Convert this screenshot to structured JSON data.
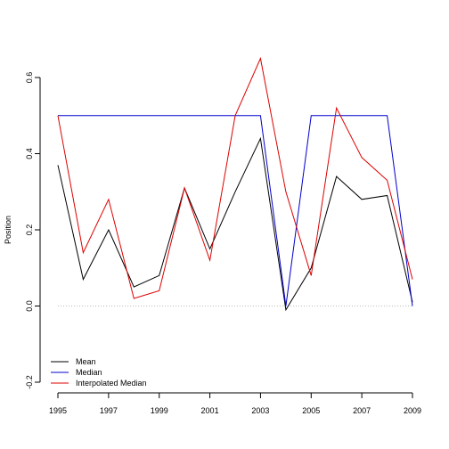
{
  "chart_data": {
    "type": "line",
    "title": "",
    "xlabel": "",
    "ylabel": "Position",
    "x": [
      1995,
      1996,
      1997,
      1998,
      1999,
      2000,
      2001,
      2002,
      2003,
      2004,
      2005,
      2006,
      2007,
      2008,
      2009
    ],
    "x_tick_labels": [
      "1995",
      "1997",
      "1999",
      "2001",
      "2003",
      "2005",
      "2007",
      "2009"
    ],
    "y_tick_labels": [
      "-0.2",
      "0.0",
      "0.2",
      "0.4",
      "0.6"
    ],
    "xlim": [
      1995,
      2009
    ],
    "ylim": [
      -0.2,
      0.6
    ],
    "zero_reference_line": true,
    "grid": false,
    "legend_position": "bottom-left",
    "series": [
      {
        "name": "Mean",
        "color": "#000000",
        "values": [
          0.37,
          0.07,
          0.2,
          0.05,
          0.08,
          0.31,
          0.15,
          0.3,
          0.44,
          -0.01,
          0.1,
          0.34,
          0.28,
          0.29,
          0.01
        ]
      },
      {
        "name": "Median",
        "color": "#0000cc",
        "values": [
          0.5,
          0.5,
          0.5,
          0.5,
          0.5,
          0.5,
          0.5,
          0.5,
          0.5,
          0.0,
          0.5,
          0.5,
          0.5,
          0.5,
          0.0
        ]
      },
      {
        "name": "Interpolated Median",
        "color": "#dd0000",
        "values": [
          0.5,
          0.14,
          0.28,
          0.02,
          0.04,
          0.31,
          0.12,
          0.5,
          0.65,
          0.3,
          0.08,
          0.52,
          0.39,
          0.33,
          0.07
        ]
      }
    ]
  }
}
